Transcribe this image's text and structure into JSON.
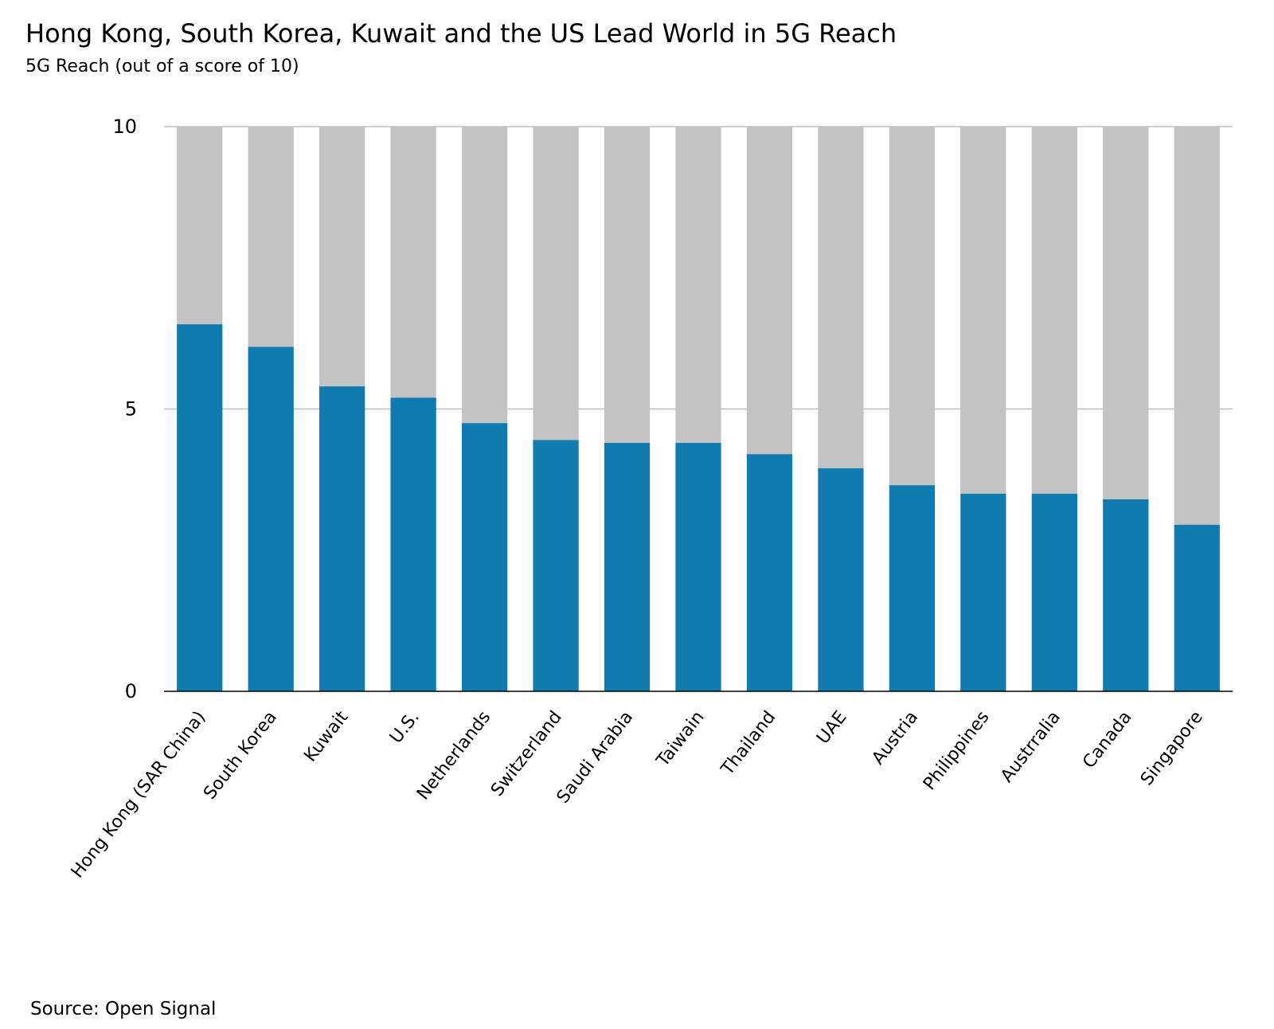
{
  "header": {
    "title": "Hong Kong, South Korea, Kuwait and the US Lead World in 5G Reach",
    "subtitle": "5G Reach (out of a score of 10)"
  },
  "footer": {
    "source": "Source: Open Signal"
  },
  "colors": {
    "value_bar": "#0f7bae",
    "remainder_bar": "#c3c3c3",
    "gridline": "#bdbdbd",
    "axis": "#000000"
  },
  "chart_data": {
    "type": "bar",
    "stacked": true,
    "categories": [
      "Hong Kong (SAR China)",
      "South Korea",
      "Kuwait",
      "U.S.",
      "Netherlands",
      "Switzerland",
      "Saudi Arabia",
      "Taiwain",
      "Thailand",
      "UAE",
      "Austria",
      "Philippines",
      "Austrralia",
      "Canada",
      "Singapore"
    ],
    "series": [
      {
        "values": [
          6.5,
          6.1,
          5.4,
          5.2,
          4.75,
          4.45,
          4.4,
          4.4,
          4.2,
          3.95,
          3.65,
          3.5,
          3.5,
          3.4,
          2.95
        ]
      },
      {
        "values": [
          3.5,
          3.9,
          4.6,
          4.8,
          5.25,
          5.55,
          5.6,
          5.6,
          5.8,
          6.05,
          6.35,
          6.5,
          6.5,
          6.6,
          7.05
        ]
      }
    ],
    "ylim": [
      0,
      10
    ],
    "yticks": [
      "0",
      "5",
      "10"
    ],
    "grid": true,
    "legend": "none"
  }
}
